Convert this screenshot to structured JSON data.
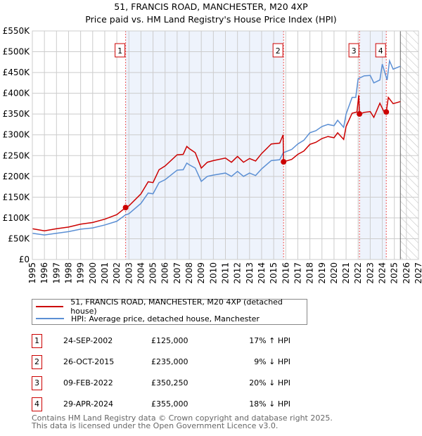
{
  "chart_data": {
    "type": "line",
    "title": "51, FRANCIS ROAD, MANCHESTER, M20 4XP",
    "subtitle": "Price paid vs. HM Land Registry's House Price Index (HPI)",
    "xlim": [
      1995,
      2027
    ],
    "ylim": [
      0,
      550000
    ],
    "x_ticks": [
      "1995",
      "1996",
      "1997",
      "1998",
      "1999",
      "2000",
      "2001",
      "2002",
      "2003",
      "2004",
      "2005",
      "2006",
      "2007",
      "2008",
      "2009",
      "2010",
      "2011",
      "2012",
      "2013",
      "2014",
      "2015",
      "2016",
      "2017",
      "2018",
      "2019",
      "2020",
      "2021",
      "2022",
      "2023",
      "2024",
      "2025",
      "2026",
      "2027"
    ],
    "y_ticks": [
      {
        "v": 0,
        "l": "£0"
      },
      {
        "v": 50000,
        "l": "£50K"
      },
      {
        "v": 100000,
        "l": "£100K"
      },
      {
        "v": 150000,
        "l": "£150K"
      },
      {
        "v": 200000,
        "l": "£200K"
      },
      {
        "v": 250000,
        "l": "£250K"
      },
      {
        "v": 300000,
        "l": "£300K"
      },
      {
        "v": 350000,
        "l": "£350K"
      },
      {
        "v": 400000,
        "l": "£400K"
      },
      {
        "v": 450000,
        "l": "£450K"
      },
      {
        "v": 500000,
        "l": "£500K"
      },
      {
        "v": 550000,
        "l": "£550K"
      }
    ],
    "grid": true,
    "forecast_from": 2025.5,
    "series": [
      {
        "name": "51, FRANCIS ROAD, MANCHESTER, M20 4XP (detached house)",
        "color": "#cc0000",
        "x": [
          1995,
          1996,
          1997,
          1998,
          1999,
          2000,
          2001,
          2002,
          2002.73,
          2003,
          2004,
          2004.6,
          2005,
          2005.5,
          2006,
          2007,
          2007.5,
          2007.8,
          2008,
          2008.5,
          2009,
          2009.5,
          2010,
          2011,
          2011.5,
          2012,
          2012.5,
          2013,
          2013.5,
          2014,
          2014.8,
          2015.5,
          2015.78,
          2015.82,
          2016.5,
          2017,
          2017.5,
          2018,
          2018.5,
          2019,
          2019.5,
          2020,
          2020.3,
          2020.8,
          2021,
          2021.5,
          2021.9,
          2022.05,
          2022.11,
          2022.5,
          2023,
          2023.3,
          2023.8,
          2024.2,
          2024.33,
          2024.5,
          2024.9,
          2025.5
        ],
        "y": [
          74000,
          69000,
          74000,
          78000,
          85000,
          89000,
          97000,
          108000,
          125000,
          129000,
          158000,
          187000,
          185000,
          216000,
          225000,
          252000,
          253000,
          272000,
          267000,
          257000,
          220000,
          234000,
          238000,
          244000,
          234000,
          248000,
          234000,
          243000,
          237000,
          255000,
          278000,
          280000,
          300000,
          235000,
          241000,
          253000,
          261000,
          277000,
          282000,
          291000,
          296000,
          293000,
          305000,
          289000,
          320000,
          352000,
          355000,
          395000,
          350000,
          354000,
          356000,
          342000,
          376000,
          352000,
          355000,
          390000,
          375000,
          380000
        ]
      },
      {
        "name": "HPI: Average price, detached house, Manchester",
        "color": "#5b8fd4",
        "x": [
          1995,
          1996,
          1997,
          1998,
          1999,
          2000,
          2001,
          2002,
          2002.7,
          2003,
          2004,
          2004.6,
          2005,
          2005.5,
          2006,
          2007,
          2007.5,
          2007.8,
          2008,
          2008.5,
          2009,
          2009.5,
          2010,
          2011,
          2011.5,
          2012,
          2012.5,
          2013,
          2013.5,
          2014,
          2014.8,
          2015.5,
          2015.8,
          2016.5,
          2017,
          2017.5,
          2018,
          2018.5,
          2019,
          2019.5,
          2020,
          2020.3,
          2020.8,
          2021,
          2021.5,
          2021.8,
          2022,
          2022.5,
          2023,
          2023.3,
          2023.8,
          2024,
          2024.4,
          2024.6,
          2024.9,
          2025.5
        ],
        "y": [
          63000,
          59000,
          63000,
          67000,
          73000,
          76000,
          83000,
          92000,
          107000,
          110000,
          135000,
          160000,
          158000,
          185000,
          192000,
          215000,
          216000,
          232000,
          228000,
          220000,
          188000,
          200000,
          203000,
          208000,
          200000,
          212000,
          200000,
          208000,
          202000,
          218000,
          238000,
          240000,
          257000,
          265000,
          278000,
          287000,
          305000,
          310000,
          320000,
          325000,
          322000,
          335000,
          318000,
          350000,
          390000,
          390000,
          435000,
          442000,
          443000,
          425000,
          432000,
          470000,
          432000,
          478000,
          458000,
          465000
        ]
      }
    ],
    "sales": [
      {
        "n": "1",
        "x": 2002.73,
        "y": 125000,
        "date": "24-SEP-2002",
        "price": "£125,000",
        "hpi": "17% ↑ HPI"
      },
      {
        "n": "2",
        "x": 2015.82,
        "y": 235000,
        "date": "26-OCT-2015",
        "price": "£235,000",
        "hpi": "9% ↓ HPI"
      },
      {
        "n": "3",
        "x": 2022.11,
        "y": 350250,
        "date": "09-FEB-2022",
        "price": "£350,250",
        "hpi": "20% ↓ HPI"
      },
      {
        "n": "4",
        "x": 2024.33,
        "y": 355000,
        "date": "29-APR-2024",
        "price": "£355,000",
        "hpi": "18% ↓ HPI"
      }
    ]
  },
  "legend": {
    "red": "51, FRANCIS ROAD, MANCHESTER, M20 4XP (detached house)",
    "blue": "HPI: Average price, detached house, Manchester"
  },
  "footer": {
    "line1": "Contains HM Land Registry data © Crown copyright and database right 2025.",
    "line2": "This data is licensed under the Open Government Licence v3.0."
  }
}
